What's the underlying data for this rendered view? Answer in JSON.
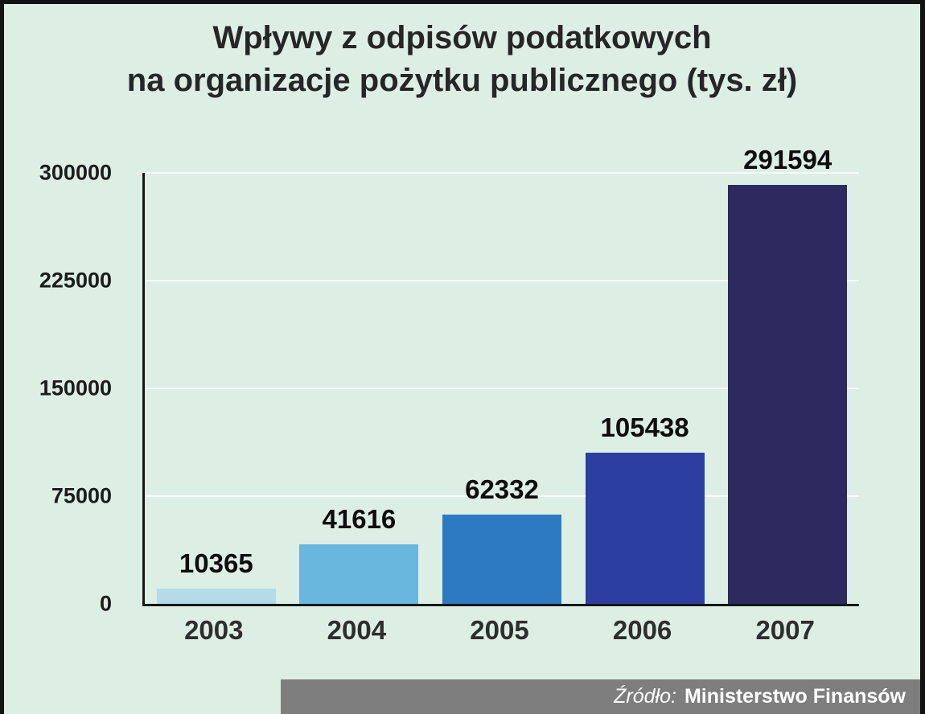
{
  "title": {
    "line1": "Wpływy z odpisów podatkowych",
    "line2": "na organizacje pożytku publicznego (tys. zł)"
  },
  "chart_data": {
    "type": "bar",
    "title": "Wpływy z odpisów podatkowych na organizacje pożytku publicznego (tys. zł)",
    "categories": [
      "2003",
      "2004",
      "2005",
      "2006",
      "2007"
    ],
    "values": [
      10365,
      41616,
      62332,
      105438,
      291594
    ],
    "value_labels": [
      "10365",
      "41616",
      "62332",
      "105438",
      "291594"
    ],
    "bar_colors": [
      "#b5dbe9",
      "#69b7de",
      "#2d7ac2",
      "#2c3e9f",
      "#2c2a5e"
    ],
    "ylim": [
      0,
      300000
    ],
    "yticks": [
      0,
      75000,
      150000,
      225000,
      300000
    ],
    "ytick_labels": [
      "0",
      "75000",
      "150000",
      "225000",
      "300000"
    ],
    "grid": true,
    "legend_position": "none",
    "xlabel": "",
    "ylabel": ""
  },
  "footer": {
    "source_label": "Źródło:",
    "source_value": "Ministerstwo Finansów"
  },
  "colors": {
    "background": "#ddeee5",
    "border": "#131313",
    "gridline": "#f7fbf8",
    "axis": "#161616",
    "title_text": "#262626",
    "footer_background": "#7e7e7e",
    "footer_text": "#ffffff"
  }
}
